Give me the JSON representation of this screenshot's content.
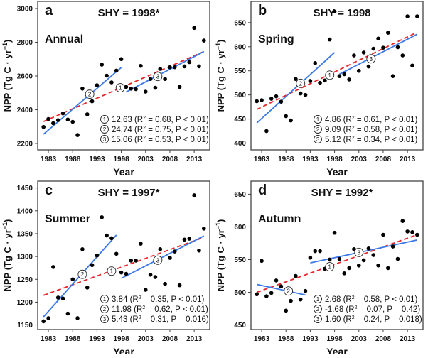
{
  "chart_data": [
    {
      "type": "scatter",
      "panel_letter": "a",
      "title": "SHY = 1998*",
      "season": "Annual",
      "xlabel": "Year",
      "ylabel": "NPP (Tg C · yr",
      "ylabel_sup": "−1",
      "ylabel_end": ")",
      "xlim": [
        1980.8,
        2016.2
      ],
      "ylim": [
        2162,
        3042
      ],
      "xticks": [
        1983,
        1988,
        1993,
        1998,
        2003,
        2008,
        2013
      ],
      "yticks": [
        2200,
        2400,
        2600,
        2800,
        3000
      ],
      "x": [
        1982,
        1983,
        1984,
        1985,
        1986,
        1987,
        1988,
        1989,
        1990,
        1991,
        1992,
        1993,
        1994,
        1995,
        1996,
        1997,
        1998,
        1999,
        2000,
        2001,
        2002,
        2003,
        2004,
        2005,
        2006,
        2007,
        2008,
        2009,
        2010,
        2011,
        2012,
        2013,
        2014,
        2015
      ],
      "y": [
        2298,
        2345,
        2320,
        2338,
        2378,
        2342,
        2328,
        2250,
        2525,
        2373,
        2450,
        2545,
        2667,
        2602,
        2562,
        2632,
        2700,
        2535,
        2525,
        2522,
        2660,
        2507,
        2582,
        2530,
        2642,
        2582,
        2652,
        2652,
        2535,
        2657,
        2682,
        2885,
        2657,
        2810
      ],
      "trend_overall": {
        "x": [
          1982,
          2015
        ],
        "y": [
          2330,
          2745
        ],
        "color": "#e8242a"
      },
      "trend_segments": [
        {
          "x": [
            1982,
            1998
          ],
          "y": [
            2255,
            2650
          ],
          "color": "#3a78e8"
        },
        {
          "x": [
            1999,
            2015
          ],
          "y": [
            2505,
            2745
          ],
          "color": "#3a78e8"
        }
      ],
      "markers": [
        {
          "label": "1",
          "x": 1997.8,
          "y": 2530
        },
        {
          "label": "2",
          "x": 1991.5,
          "y": 2492
        },
        {
          "label": "3",
          "x": 2005.5,
          "y": 2597
        }
      ],
      "stats": [
        {
          "label": "1",
          "slope": "12.63",
          "r2": "0.68",
          "p": "P < 0.01"
        },
        {
          "label": "2",
          "slope": "24.74",
          "r2": "0.75",
          "p": "P < 0.01"
        },
        {
          "label": "3",
          "slope": "15.06",
          "r2": "0.53",
          "p": "P < 0.01"
        }
      ]
    },
    {
      "type": "scatter",
      "panel_letter": "b",
      "title": "SHY = 1998",
      "season": "Spring",
      "xlabel": "Year",
      "ylabel": "NPP (Tg C · yr",
      "ylabel_sup": "−1",
      "ylabel_end": ")",
      "xlim": [
        1980.8,
        2016.2
      ],
      "ylim": [
        386,
        694
      ],
      "xticks": [
        1983,
        1988,
        1993,
        1998,
        2003,
        2008,
        2013
      ],
      "yticks": [
        400,
        450,
        500,
        550,
        600,
        650
      ],
      "x": [
        1982,
        1983,
        1984,
        1985,
        1986,
        1987,
        1988,
        1989,
        1990,
        1991,
        1992,
        1993,
        1994,
        1995,
        1996,
        1997,
        1998,
        1999,
        2000,
        2001,
        2002,
        2003,
        2004,
        2005,
        2006,
        2007,
        2008,
        2009,
        2010,
        2011,
        2012,
        2013,
        2014,
        2015
      ],
      "y": [
        487,
        489,
        425,
        492,
        497,
        486,
        456,
        447,
        533,
        503,
        500,
        529,
        566,
        525,
        530,
        615,
        673,
        539,
        543,
        532,
        582,
        550,
        588,
        559,
        596,
        617,
        598,
        629,
        539,
        599,
        582,
        663,
        561,
        663
      ],
      "trend_overall": {
        "x": [
          1982,
          2015
        ],
        "y": [
          470,
          630
        ],
        "color": "#e8242a"
      },
      "trend_segments": [
        {
          "x": [
            1982,
            1998
          ],
          "y": [
            442,
            588
          ],
          "color": "#3a78e8"
        },
        {
          "x": [
            1999,
            2015
          ],
          "y": [
            543,
            626
          ],
          "color": "#3a78e8"
        }
      ],
      "markers": [
        {
          "label": "1",
          "x": 1997,
          "y": 541
        },
        {
          "label": "2",
          "x": 1991,
          "y": 524
        },
        {
          "label": "3",
          "x": 2005.5,
          "y": 575
        }
      ],
      "stats": [
        {
          "label": "1",
          "slope": "4.86",
          "r2": "0.61",
          "p": "P < 0.01"
        },
        {
          "label": "2",
          "slope": "9.09",
          "r2": "0.58",
          "p": "P < 0.01"
        },
        {
          "label": "3",
          "slope": "5.12",
          "r2": "0.34",
          "p": "P < 0.01"
        }
      ]
    },
    {
      "type": "scatter",
      "panel_letter": "c",
      "title": "SHY = 1997*",
      "season": "Summer",
      "xlabel": "Year",
      "ylabel": "NPP (Tg C · yr",
      "ylabel_sup": "−1",
      "ylabel_end": ")",
      "xlim": [
        1980.8,
        2016.2
      ],
      "ylim": [
        1140,
        1465
      ],
      "xticks": [
        1983,
        1988,
        1993,
        1998,
        2003,
        2008,
        2013
      ],
      "yticks": [
        1150,
        1200,
        1250,
        1300,
        1350,
        1400,
        1450
      ],
      "x": [
        1982,
        1983,
        1984,
        1985,
        1986,
        1987,
        1988,
        1989,
        1990,
        1991,
        1992,
        1993,
        1994,
        1995,
        1996,
        1997,
        1998,
        1999,
        2000,
        2001,
        2002,
        2003,
        2004,
        2005,
        2006,
        2007,
        2008,
        2009,
        2010,
        2011,
        2012,
        2013,
        2014,
        2015
      ],
      "y": [
        1158,
        1165,
        1277,
        1210,
        1208,
        1175,
        1250,
        1165,
        1316,
        1232,
        1281,
        1302,
        1386,
        1346,
        1340,
        1306,
        1265,
        1262,
        1291,
        1291,
        1328,
        1227,
        1260,
        1255,
        1316,
        1240,
        1297,
        1311,
        1237,
        1337,
        1339,
        1434,
        1313,
        1361
      ],
      "trend_overall": {
        "x": [
          1982,
          2015
        ],
        "y": [
          1215,
          1342
        ],
        "color": "#e8242a"
      },
      "trend_segments": [
        {
          "x": [
            1982,
            1997
          ],
          "y": [
            1168,
            1347
          ],
          "color": "#3a78e8"
        },
        {
          "x": [
            1998,
            2015
          ],
          "y": [
            1252,
            1345
          ],
          "color": "#3a78e8"
        }
      ],
      "markers": [
        {
          "label": "1",
          "x": 1996,
          "y": 1268
        },
        {
          "label": "2",
          "x": 1990,
          "y": 1261
        },
        {
          "label": "3",
          "x": 2005.5,
          "y": 1292
        }
      ],
      "stats": [
        {
          "label": "1",
          "slope": "3.84",
          "r2": "0.35",
          "p": "P < 0.01"
        },
        {
          "label": "2",
          "slope": "11.98",
          "r2": "0.62",
          "p": "P < 0.01"
        },
        {
          "label": "3",
          "slope": "5.43",
          "r2": "0.31",
          "p": "P = 0.016"
        }
      ]
    },
    {
      "type": "scatter",
      "panel_letter": "d",
      "title": "SHY = 1992*",
      "season": "Autumn",
      "xlabel": "Year",
      "ylabel": "NPP (Tg C · yr",
      "ylabel_sup": "−1",
      "ylabel_end": ")",
      "xlim": [
        1980.8,
        2016.2
      ],
      "ylim": [
        443,
        670
      ],
      "xticks": [
        1983,
        1988,
        1993,
        1998,
        2003,
        2008,
        2013
      ],
      "yticks": [
        450,
        500,
        550,
        600,
        650
      ],
      "x": [
        1982,
        1983,
        1984,
        1985,
        1986,
        1987,
        1988,
        1989,
        1990,
        1991,
        1992,
        1993,
        1994,
        1995,
        1996,
        1997,
        1998,
        1999,
        2000,
        2001,
        2002,
        2003,
        2004,
        2005,
        2006,
        2007,
        2008,
        2009,
        2010,
        2011,
        2012,
        2013,
        2014,
        2015
      ],
      "y": [
        497,
        548,
        494,
        499,
        518,
        509,
        472,
        487,
        525,
        489,
        502,
        553,
        563,
        563,
        536,
        550,
        591,
        551,
        529,
        537,
        566,
        541,
        549,
        567,
        557,
        541,
        588,
        537,
        570,
        551,
        609,
        593,
        592,
        588
      ],
      "trend_overall": {
        "x": [
          1982,
          2015
        ],
        "y": [
          500,
          588
        ],
        "color": "#e8242a"
      },
      "trend_segments": [
        {
          "x": [
            1982,
            1992
          ],
          "y": [
            512,
            496
          ],
          "color": "#3a78e8"
        },
        {
          "x": [
            1993,
            2015
          ],
          "y": [
            545,
            580
          ],
          "color": "#3a78e8"
        }
      ],
      "markers": [
        {
          "label": "1",
          "x": 1997,
          "y": 539
        },
        {
          "label": "2",
          "x": 1988.5,
          "y": 502
        },
        {
          "label": "3",
          "x": 2003,
          "y": 561
        }
      ],
      "stats": [
        {
          "label": "1",
          "slope": "2.68",
          "r2": "0.58",
          "p": "P < 0.01"
        },
        {
          "label": "2",
          "slope": "-1.68",
          "r2": "0.07",
          "p": "P = 0.42"
        },
        {
          "label": "3",
          "slope": "1.60",
          "r2": "0.24",
          "p": "P = 0.018"
        }
      ]
    }
  ]
}
